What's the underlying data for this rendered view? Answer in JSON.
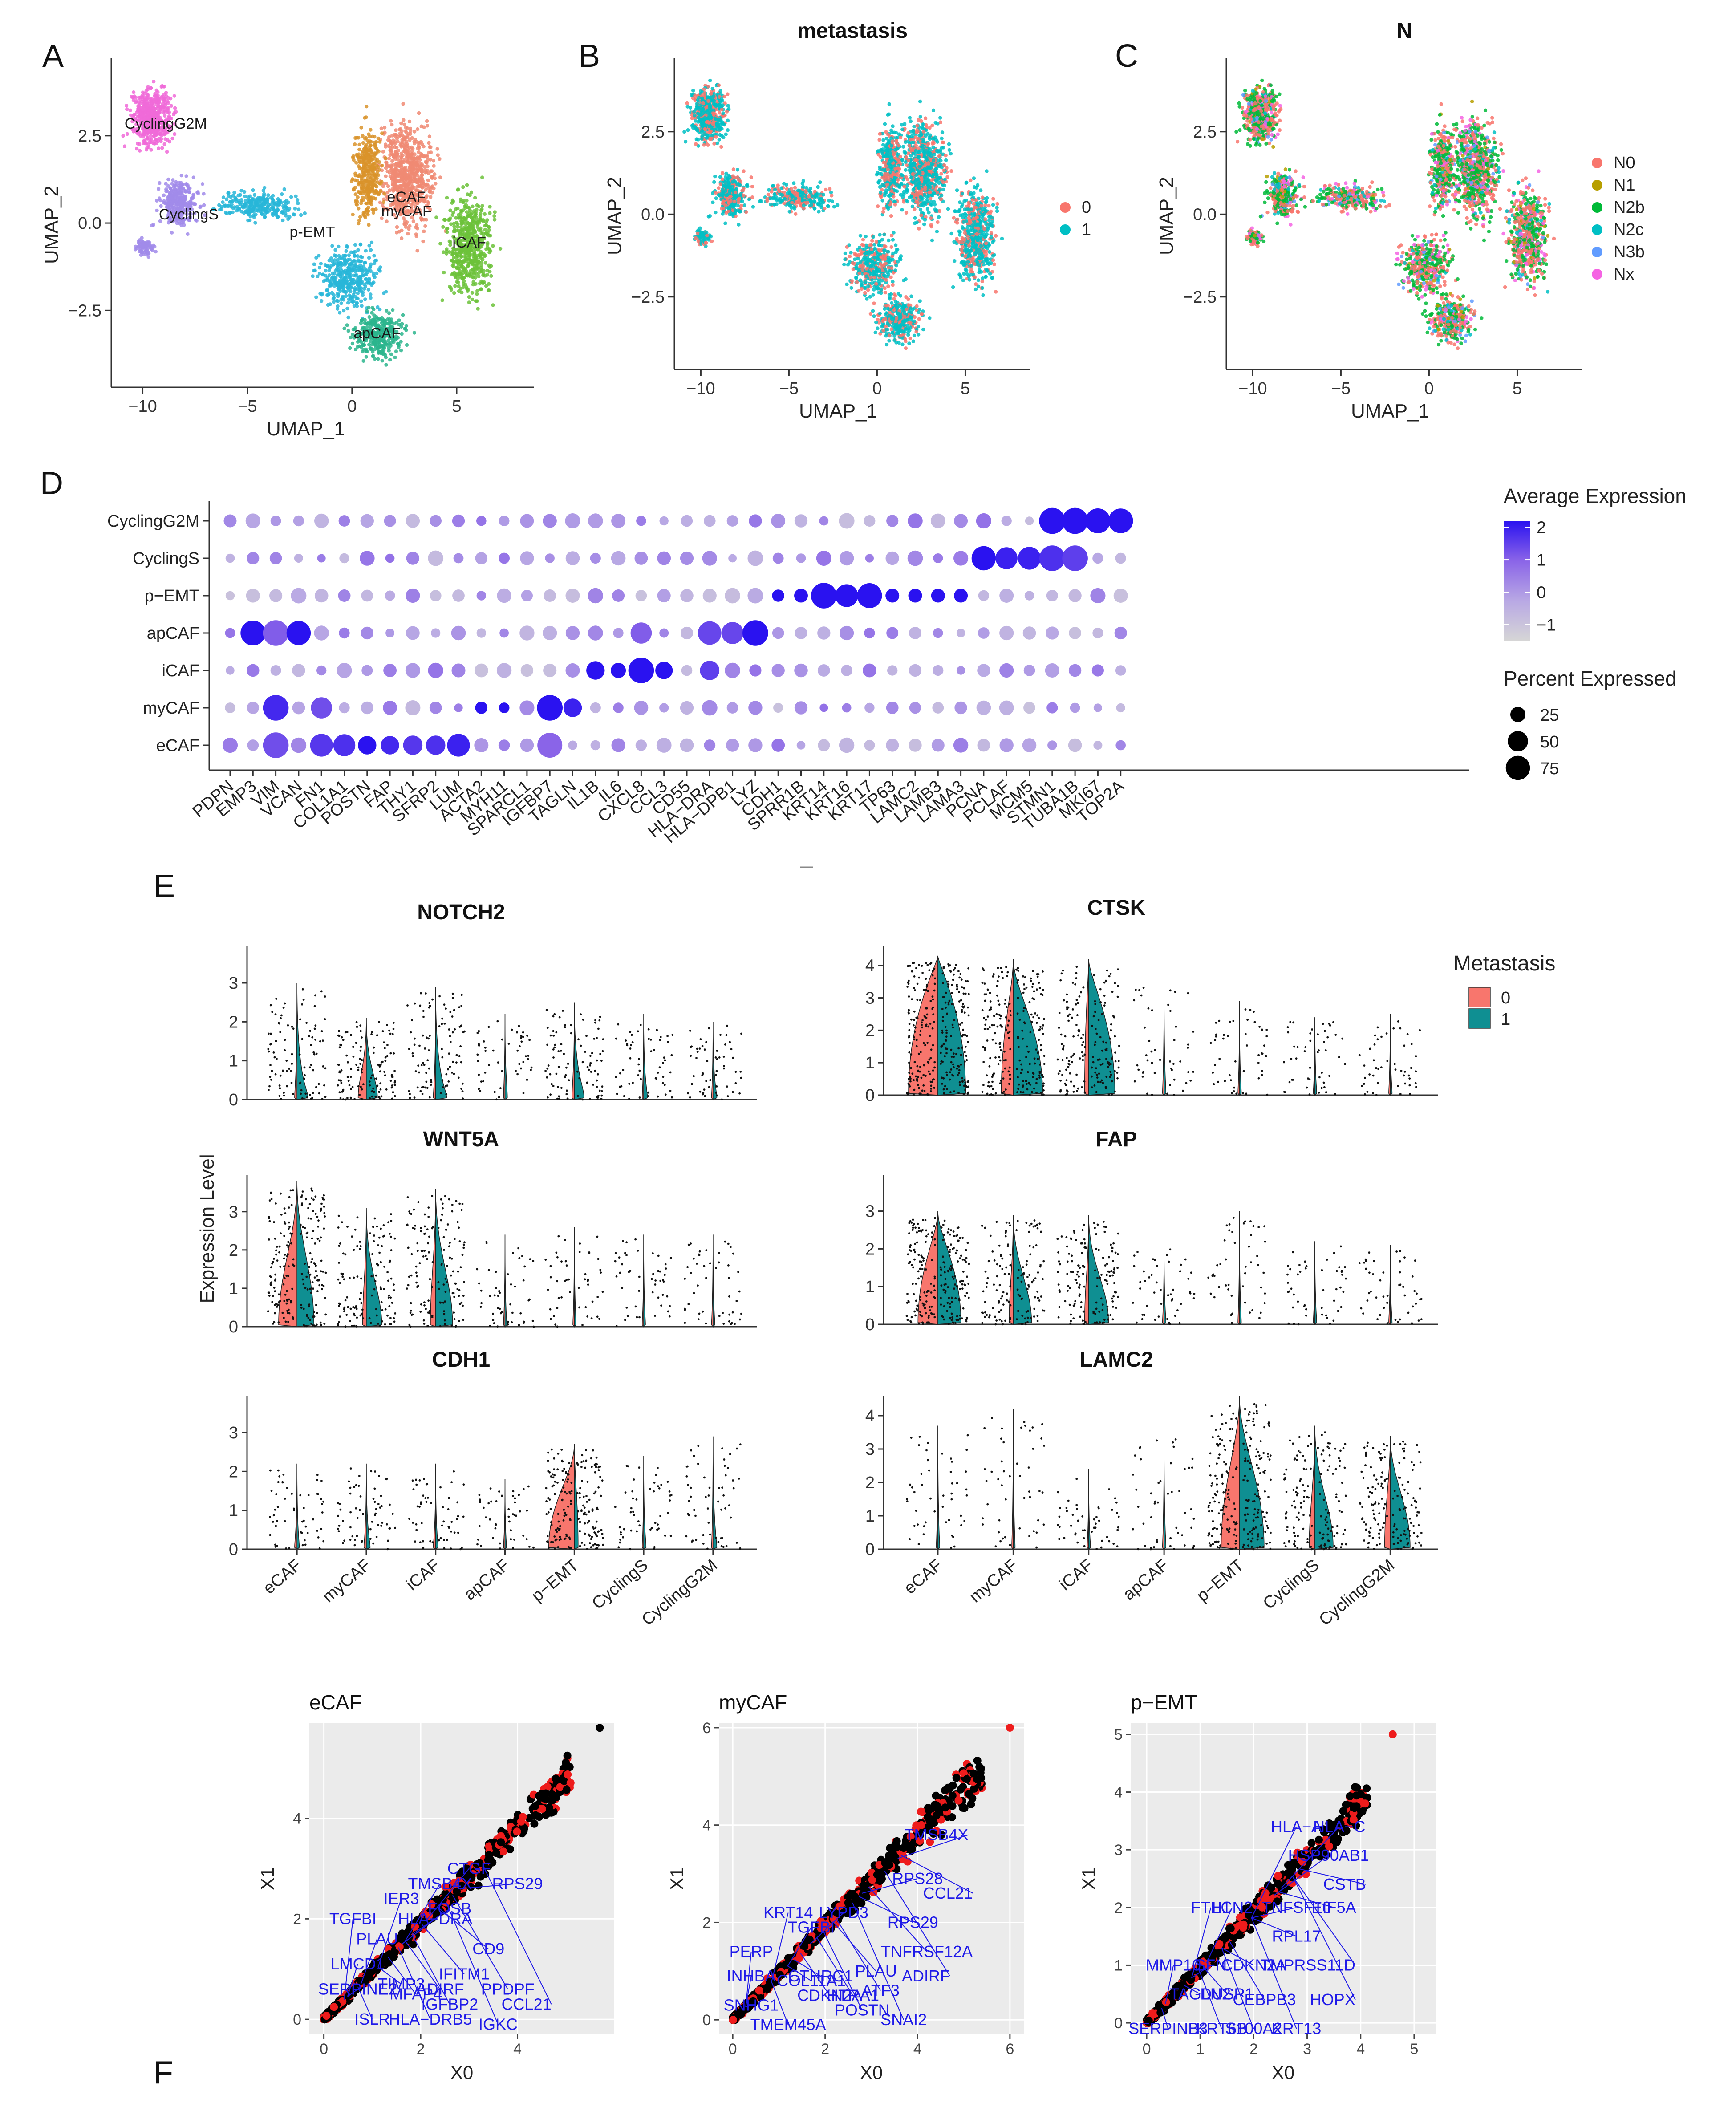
{
  "panel_letters": [
    "A",
    "B",
    "C",
    "D",
    "E",
    "F"
  ],
  "colors": {
    "clusters": {
      "eCAF": "#f08a73",
      "myCAF": "#d9932a",
      "iCAF": "#6cc23a",
      "apCAF": "#2bb58d",
      "p-EMT": "#28b6d8",
      "CyclingS": "#a18bea",
      "CyclingG2M": "#f06ad8"
    },
    "metastasis": {
      "0": "#f8766d",
      "1": "#00bfc4"
    },
    "metastasis_violin": {
      "0": "#f8766d",
      "1": "#0f8f92"
    },
    "N": {
      "N0": "#f8766d",
      "N1": "#b79f00",
      "N2b": "#00ba38",
      "N2c": "#00bfc4",
      "N3b": "#619cff",
      "Nx": "#f564e3"
    },
    "dot_gradient": [
      "#d6d6d6",
      "#b9a9e4",
      "#8a64e8",
      "#2a12f0"
    ],
    "up": "#ee1c1c",
    "point": "#000000",
    "gene_label": "#1f1ae8",
    "panel_bg": "#ebebeb"
  },
  "A": {
    "xlabel": "UMAP_1",
    "ylabel": "UMAP_2",
    "xticks": [
      -10,
      -5,
      0,
      5
    ],
    "yticks": [
      -2.5,
      0.0,
      2.5
    ],
    "xticklabels": [
      "−10",
      "−5",
      "0",
      "5"
    ],
    "yticklabels": [
      "−2.5",
      "0.0",
      "2.5"
    ],
    "xlim": [
      -11.5,
      8.7
    ],
    "ylim": [
      -4.7,
      4.6
    ],
    "cluster_labels": [
      {
        "text": "CyclingG2M",
        "x": -8.9,
        "y": 2.7
      },
      {
        "text": "CyclingS",
        "x": -7.8,
        "y": 0.1
      },
      {
        "text": "p-EMT",
        "x": -1.9,
        "y": -0.4
      },
      {
        "text": "eCAF",
        "x": 2.6,
        "y": 0.6
      },
      {
        "text": "myCAF",
        "x": 2.6,
        "y": 0.2
      },
      {
        "text": "iCAF",
        "x": 5.6,
        "y": -0.7
      },
      {
        "text": "apCAF",
        "x": 1.2,
        "y": -3.3
      }
    ]
  },
  "B": {
    "title": "metastasis",
    "xlabel": "UMAP_1",
    "ylabel": "UMAP_2",
    "xticks": [
      -10,
      -5,
      0,
      5
    ],
    "yticks": [
      -2.5,
      0.0,
      2.5
    ],
    "xticklabels": [
      "−10",
      "−5",
      "0",
      "5"
    ],
    "yticklabels": [
      "−2.5",
      "0.0",
      "2.5"
    ],
    "xlim": [
      -11.5,
      8.7
    ],
    "ylim": [
      -4.7,
      4.6
    ],
    "legend": [
      "0",
      "1"
    ]
  },
  "C": {
    "title": "N",
    "xlabel": "UMAP_1",
    "ylabel": "UMAP_2",
    "xticks": [
      -10,
      -5,
      0,
      5
    ],
    "yticks": [
      -2.5,
      0.0,
      2.5
    ],
    "xticklabels": [
      "−10",
      "−5",
      "0",
      "5"
    ],
    "yticklabels": [
      "−2.5",
      "0.0",
      "2.5"
    ],
    "xlim": [
      -11.5,
      8.7
    ],
    "ylim": [
      -4.7,
      4.6
    ],
    "legend": [
      "N0",
      "N1",
      "N2b",
      "N2c",
      "N3b",
      "Nx"
    ]
  },
  "D": {
    "type": "dotplot",
    "rows": [
      "CyclingG2M",
      "CyclingS",
      "p−EMT",
      "apCAF",
      "iCAF",
      "myCAF",
      "eCAF"
    ],
    "genes": [
      "PDPN",
      "EMP3",
      "VIM",
      "VCAN",
      "FN1",
      "COL1A1",
      "POSTN",
      "FAP",
      "THY1",
      "SFRP2",
      "LUM",
      "ACTA2",
      "MYH11",
      "SPARCL1",
      "IGFBP7",
      "TAGLN",
      "IL1B",
      "IL6",
      "CXCL8",
      "CCL3",
      "CD55",
      "HLA−DRA",
      "HLA−DPB1",
      "LYZ",
      "CDH1",
      "SPRR1B",
      "KRT14",
      "KRT16",
      "KRT17",
      "TP63",
      "LAMC2",
      "LAMB3",
      "LAMA3",
      "PCNA",
      "PCLAF",
      "MCM5",
      "STMN1",
      "TUBA1B",
      "MKI67",
      "TOP2A"
    ],
    "legend_color_title": "Average Expression",
    "legend_color_ticks": [
      2,
      1,
      0,
      -1
    ],
    "legend_color_labels": [
      "2",
      "1",
      "0",
      "−1"
    ],
    "legend_size_title": "Percent Expressed",
    "legend_size_values": [
      25,
      50,
      75
    ],
    "highlights": [
      {
        "row": 0,
        "genes": [
          "STMN1",
          "TUBA1B",
          "MKI67",
          "TOP2A"
        ],
        "pct": [
          88,
          88,
          80,
          78
        ],
        "expr": [
          2,
          2,
          2,
          2
        ]
      },
      {
        "row": 1,
        "genes": [
          "PCNA",
          "PCLAF",
          "MCM5",
          "STMN1",
          "TUBA1B"
        ],
        "pct": [
          75,
          60,
          65,
          85,
          85
        ],
        "expr": [
          2,
          1.8,
          1.8,
          1.6,
          1.4
        ]
      },
      {
        "row": 2,
        "genes": [
          "CDH1",
          "SPRR1B",
          "KRT14",
          "KRT16",
          "KRT17",
          "TP63",
          "LAMC2",
          "LAMB3",
          "LAMA3"
        ],
        "pct": [
          15,
          20,
          85,
          65,
          80,
          20,
          20,
          20,
          20
        ],
        "expr": [
          2,
          2,
          2,
          2,
          2,
          2,
          2,
          2,
          2
        ]
      },
      {
        "row": 3,
        "genes": [
          "EMP3",
          "VIM",
          "VCAN",
          "CXCL8",
          "HLA−DRA",
          "HLA−DPB1",
          "LYZ"
        ],
        "pct": [
          80,
          85,
          75,
          55,
          70,
          60,
          85
        ],
        "expr": [
          2,
          1,
          2,
          1,
          1.3,
          1.3,
          2
        ]
      },
      {
        "row": 4,
        "genes": [
          "IL1B",
          "IL6",
          "CXCL8",
          "CCL3",
          "HLA−DRA"
        ],
        "pct": [
          40,
          25,
          85,
          35,
          45
        ],
        "expr": [
          2,
          2,
          2,
          2,
          1.4
        ]
      },
      {
        "row": 5,
        "genes": [
          "VIM",
          "FN1",
          "ACTA2",
          "MYH11",
          "IGFBP7",
          "TAGLN"
        ],
        "pct": [
          85,
          55,
          15,
          10,
          85,
          40
        ],
        "expr": [
          1.7,
          1.2,
          2,
          2,
          2,
          1.8
        ]
      },
      {
        "row": 6,
        "genes": [
          "VIM",
          "FN1",
          "COL1A1",
          "POSTN",
          "FAP",
          "THY1",
          "SFRP2",
          "LUM",
          "IGFBP7"
        ],
        "pct": [
          85,
          65,
          60,
          40,
          40,
          45,
          45,
          65,
          80
        ],
        "expr": [
          1.2,
          1.5,
          1.6,
          2,
          1.7,
          1.5,
          1.6,
          1.8,
          0.9
        ]
      }
    ]
  },
  "E": {
    "ylabel": "Expression Level",
    "categories": [
      "eCAF",
      "myCAF",
      "iCAF",
      "apCAF",
      "p−EMT",
      "CyclingS",
      "CyclingG2M"
    ],
    "legend_title": "Metastasis",
    "legend": [
      "0",
      "1"
    ],
    "panels": [
      {
        "title": "NOTCH2",
        "ymax": 3,
        "yticks": [
          0,
          1,
          2,
          3
        ],
        "tops": [
          3.0,
          2.1,
          2.9,
          2.2,
          2.5,
          2.2,
          2.0
        ]
      },
      {
        "title": "CTSK",
        "ymax": 4,
        "yticks": [
          0,
          1,
          2,
          3,
          4
        ],
        "tops": [
          4.3,
          4.2,
          4.2,
          3.5,
          2.9,
          2.4,
          2.5
        ]
      },
      {
        "title": "WNT5A",
        "ymax": 3,
        "yticks": [
          0,
          1,
          2,
          3
        ],
        "tops": [
          3.8,
          3.1,
          3.6,
          2.4,
          2.6,
          2.4,
          2.4
        ]
      },
      {
        "title": "FAP",
        "ymax": 3,
        "yticks": [
          0,
          1,
          2,
          3
        ],
        "tops": [
          3.0,
          2.9,
          2.9,
          2.2,
          3.0,
          2.2,
          2.1
        ]
      },
      {
        "title": "CDH1",
        "ymax": 3,
        "yticks": [
          0,
          1,
          2,
          3
        ],
        "tops": [
          2.2,
          2.2,
          2.2,
          1.8,
          2.7,
          2.4,
          2.9
        ]
      },
      {
        "title": "LAMC2",
        "ymax": 4,
        "yticks": [
          0,
          1,
          2,
          3,
          4
        ],
        "tops": [
          3.7,
          4.2,
          2.4,
          3.5,
          4.6,
          3.7,
          3.4
        ]
      }
    ]
  },
  "F": {
    "xlabel": "X0",
    "ylabel": "X1",
    "panels": [
      {
        "title": "eCAF",
        "xlim": [
          -0.3,
          6
        ],
        "ylim": [
          -0.3,
          5.9
        ],
        "xticks": [
          0,
          2,
          4
        ],
        "yticks": [
          0,
          2,
          4
        ],
        "max_point": [
          5.7,
          5.8
        ],
        "labels": [
          "CTGF",
          "RPS29",
          "TGFBI",
          "IER3",
          "TMSB4X",
          "FOSB",
          "HLA−DRA",
          "PLAU",
          "CD9",
          "LMCD1",
          "IFITM1",
          "SERPINE2",
          "ADIRF",
          "PPDPF",
          "CCL21",
          "TIMP3",
          "MFAP4",
          "IGKC",
          "IGFBP2",
          "ISLR",
          "HLA−DRB5"
        ],
        "label_pos": [
          [
            3.0,
            3.0
          ],
          [
            4.0,
            2.7
          ],
          [
            0.6,
            2.0
          ],
          [
            1.6,
            2.4
          ],
          [
            2.4,
            2.7
          ],
          [
            2.6,
            2.2
          ],
          [
            2.3,
            2.0
          ],
          [
            1.1,
            1.6
          ],
          [
            3.4,
            1.4
          ],
          [
            0.7,
            1.1
          ],
          [
            2.9,
            0.9
          ],
          [
            0.7,
            0.6
          ],
          [
            2.4,
            0.6
          ],
          [
            3.8,
            0.6
          ],
          [
            4.7,
            0.3
          ],
          [
            1.6,
            0.7
          ],
          [
            1.9,
            0.5
          ],
          [
            3.6,
            -0.1
          ],
          [
            2.6,
            0.3
          ],
          [
            1.0,
            0.0
          ],
          [
            2.2,
            0.0
          ]
        ]
      },
      {
        "title": "myCAF",
        "xlim": [
          -0.3,
          6.3
        ],
        "ylim": [
          -0.3,
          6.1
        ],
        "xticks": [
          0,
          2,
          4,
          6
        ],
        "yticks": [
          0,
          2,
          4,
          6
        ],
        "max_point": [
          6.0,
          6.0
        ],
        "labels": [
          "TMSB4X",
          "RPS28",
          "CCL21",
          "KRT14",
          "LYPD3",
          "TGFBI",
          "RPS29",
          "PERP",
          "TNFRSF12A",
          "INHBA",
          "COL11A1",
          "CTHRC1",
          "PLAU",
          "ADIRF",
          "ATF3",
          "SNAI2",
          "SNHG1",
          "TMEM45A",
          "CDKN2A",
          "HTRA1",
          "POSTN"
        ],
        "label_pos": [
          [
            5.1,
            3.8
          ],
          [
            4.0,
            2.9
          ],
          [
            5.2,
            2.6
          ],
          [
            1.2,
            2.2
          ],
          [
            2.4,
            2.2
          ],
          [
            1.7,
            1.9
          ],
          [
            3.9,
            2.0
          ],
          [
            0.4,
            1.4
          ],
          [
            4.2,
            1.4
          ],
          [
            0.4,
            0.9
          ],
          [
            1.7,
            0.8
          ],
          [
            1.9,
            0.9
          ],
          [
            3.1,
            1.0
          ],
          [
            4.7,
            0.9
          ],
          [
            3.2,
            0.6
          ],
          [
            3.7,
            0.0
          ],
          [
            0.4,
            0.3
          ],
          [
            1.2,
            -0.1
          ],
          [
            2.1,
            0.5
          ],
          [
            2.6,
            0.5
          ],
          [
            2.8,
            0.2
          ]
        ]
      },
      {
        "title": "p−EMT",
        "xlim": [
          -0.3,
          5.4
        ],
        "ylim": [
          -0.2,
          5.2
        ],
        "xticks": [
          0,
          1,
          2,
          3,
          4,
          5
        ],
        "yticks": [
          0,
          1,
          2,
          3,
          4,
          5
        ],
        "max_point": [
          4.6,
          5.0
        ],
        "labels": [
          "HLA−A",
          "HLA−C",
          "HSP90AB1",
          "CSTB",
          "TNFSF10",
          "EIF5A",
          "RPL17",
          "CDKN2A",
          "TMPRSS11D",
          "MMP10",
          "SFN",
          "TAGLN2",
          "DUSP1",
          "CEBPB3",
          "HOPX",
          "SERPINB3",
          "KRT6B",
          "KRT13",
          "S100A2",
          "FTH1",
          "LCN2"
        ],
        "label_pos": [
          [
            2.8,
            3.4
          ],
          [
            3.6,
            3.4
          ],
          [
            3.4,
            2.9
          ],
          [
            4.1,
            2.4
          ],
          [
            2.8,
            2.0
          ],
          [
            3.5,
            2.0
          ],
          [
            2.8,
            1.5
          ],
          [
            2.0,
            1.0
          ],
          [
            3.9,
            1.0
          ],
          [
            0.5,
            1.0
          ],
          [
            1.2,
            1.0
          ],
          [
            1.0,
            0.5
          ],
          [
            1.5,
            0.5
          ],
          [
            2.2,
            0.4
          ],
          [
            3.9,
            0.4
          ],
          [
            0.4,
            -0.1
          ],
          [
            1.4,
            -0.1
          ],
          [
            2.8,
            -0.1
          ],
          [
            2.0,
            -0.1
          ],
          [
            1.2,
            2.0
          ],
          [
            1.6,
            2.0
          ]
        ]
      }
    ]
  }
}
